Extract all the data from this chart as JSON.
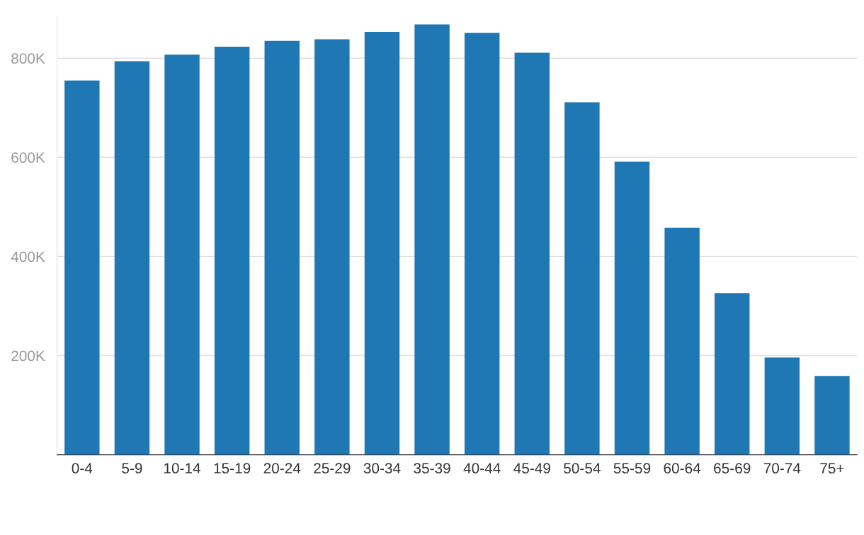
{
  "chart_data": {
    "type": "bar",
    "categories": [
      "0-4",
      "5-9",
      "10-14",
      "15-19",
      "20-24",
      "25-29",
      "30-34",
      "35-39",
      "40-44",
      "45-49",
      "50-54",
      "55-59",
      "60-64",
      "65-69",
      "70-74",
      "75+"
    ],
    "values": [
      755000,
      794000,
      807000,
      823000,
      835000,
      838000,
      853000,
      868000,
      851000,
      811000,
      711000,
      591000,
      458000,
      326000,
      196000,
      159000
    ],
    "color": "#1f77b4",
    "ylim": [
      0,
      885000
    ],
    "yticks": [
      {
        "value": 200000,
        "label": "200K"
      },
      {
        "value": 400000,
        "label": "400K"
      },
      {
        "value": 600000,
        "label": "600K"
      },
      {
        "value": 800000,
        "label": "800K"
      }
    ],
    "grid": "y",
    "legend": false
  }
}
